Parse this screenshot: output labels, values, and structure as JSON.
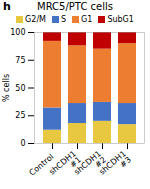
{
  "chart_data": {
    "type": "bar",
    "stacked": true,
    "title": "MRC5/PTC cells",
    "annotations": [
      "h"
    ],
    "categories": [
      "Control",
      "shCDH1\n#1",
      "shCDH1\n#2",
      "shCDH1\n#3"
    ],
    "series": [
      {
        "name": "G2/M",
        "color": "#e8c840",
        "values": [
          12,
          18,
          20,
          17
        ]
      },
      {
        "name": "S",
        "color": "#4472c4",
        "values": [
          20,
          18,
          17,
          19
        ]
      },
      {
        "name": "G1",
        "color": "#ed7d31",
        "values": [
          60,
          52,
          48,
          54
        ]
      },
      {
        "name": "SubG1",
        "color": "#c00000",
        "values": [
          8,
          12,
          15,
          10
        ]
      }
    ],
    "ylabel": "% cells",
    "ylim": [
      0,
      100
    ],
    "yticks": [
      0,
      25,
      50,
      75,
      100
    ],
    "legend": "top"
  }
}
